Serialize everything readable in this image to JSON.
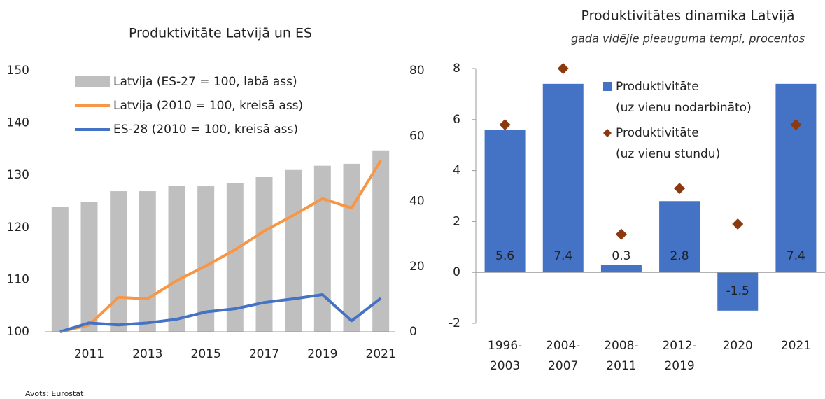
{
  "source": "Avots: Eurostat",
  "chart_data": [
    {
      "type": "combo",
      "title": "Produktivitāte Latvijā un ES",
      "categories": [
        null,
        "2011",
        null,
        "2013",
        null,
        "2015",
        null,
        "2017",
        null,
        "2019",
        null,
        "2021"
      ],
      "ylim": [
        100,
        150
      ],
      "yticks": [
        100,
        110,
        120,
        130,
        140,
        150
      ],
      "y2lim": [
        0,
        80
      ],
      "y2ticks": [
        0,
        20,
        40,
        60,
        80
      ],
      "series": [
        {
          "name": "Latvija (ES-27 = 100, labā ass)",
          "kind": "bar",
          "axis": "y2",
          "color": "#bfbfbf",
          "values": [
            38.2,
            39.7,
            43.1,
            43.1,
            44.8,
            44.6,
            45.5,
            47.4,
            49.6,
            50.9,
            51.5,
            55.6
          ]
        },
        {
          "name": "Latvija (2010 = 100, kreisā ass)",
          "kind": "line",
          "color": "#f79646",
          "values": [
            100,
            101.3,
            106.6,
            106.3,
            109.8,
            112.6,
            115.7,
            119.3,
            122.3,
            125.5,
            123.7,
            132.8
          ]
        },
        {
          "name": "ES-28 (2010 = 100, kreisā ass)",
          "kind": "line",
          "color": "#4472c4",
          "values": [
            100,
            101.7,
            101.3,
            101.7,
            102.4,
            103.8,
            104.4,
            105.6,
            106.3,
            107.1,
            102.1,
            106.4
          ]
        }
      ]
    },
    {
      "type": "bar-scatter",
      "title": "Produktivitātes dinamika Latvijā",
      "subtitle": "gada vidējie pieauguma tempi, procentos",
      "categories": [
        [
          "1996-",
          "2003"
        ],
        [
          "2004-",
          "2007"
        ],
        [
          "2008-",
          "2011"
        ],
        [
          "2012-",
          "2019"
        ],
        [
          "2020"
        ],
        [
          "2021"
        ]
      ],
      "ylim": [
        -2,
        8
      ],
      "yticks": [
        -2,
        0,
        2,
        4,
        6,
        8
      ],
      "series": [
        {
          "name": [
            "Produktivitāte",
            "(uz vienu nodarbināto)"
          ],
          "kind": "bar",
          "color": "#4472c4",
          "values": [
            5.6,
            7.4,
            0.3,
            2.8,
            -1.5,
            7.4
          ]
        },
        {
          "name": [
            "Produktivitāte",
            "(uz vienu stundu)"
          ],
          "kind": "diamond",
          "color": "#8b3a0f",
          "values": [
            5.8,
            8.0,
            1.5,
            3.3,
            1.9,
            5.8
          ]
        }
      ]
    }
  ]
}
